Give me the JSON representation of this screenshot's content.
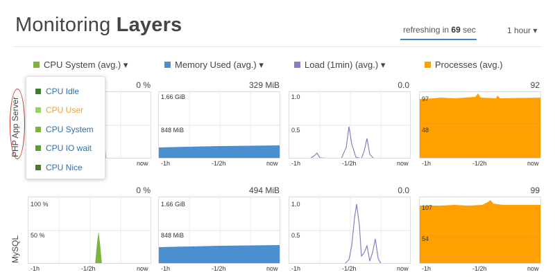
{
  "header": {
    "title_light": "Monitoring",
    "title_bold": "Layers",
    "refresh_prefix": "refreshing in",
    "refresh_seconds": "69",
    "refresh_suffix": "sec",
    "time_range": "1 hour ▾"
  },
  "colors": {
    "cpu": "#7fb23e",
    "memory": "#4a8fd0",
    "load": "#8c7bbf",
    "processes": "#ff9f00"
  },
  "columns": [
    {
      "label": "CPU System (avg.) ▾",
      "swatch_color": "#7fb23e"
    },
    {
      "label": "Memory Used (avg.) ▾",
      "swatch_color": "#4a8fd0"
    },
    {
      "label": "Load (1min) (avg.) ▾",
      "swatch_color": "#8c7bbf"
    },
    {
      "label": "Processes (avg.)",
      "swatch_color": "#ff9f00"
    }
  ],
  "axis_labels": {
    "start": "-1h",
    "mid": "-1/2h",
    "end": "now"
  },
  "rows": [
    {
      "name": "PHP App Server",
      "current_values": [
        "0 %",
        "329 MiB",
        "0.0",
        "92"
      ],
      "grid_labels": {
        "memory": [
          "1.66 GiB",
          "848 MiB"
        ],
        "load": [
          "1.0",
          "0.5"
        ],
        "processes": [
          "97",
          "48"
        ]
      }
    },
    {
      "name": "MySQL",
      "current_values": [
        "0 %",
        "494 MiB",
        "0.0",
        "99"
      ],
      "grid_labels": {
        "cpu": [
          "100 %",
          "50 %"
        ],
        "memory": [
          "1.66 GiB",
          "848 MiB"
        ],
        "load": [
          "1.0",
          "0.5"
        ],
        "processes": [
          "107",
          "54"
        ]
      }
    }
  ],
  "dropdown": {
    "items": [
      {
        "label": "CPU Idle",
        "swatch_color": "#3a7d2a",
        "text_color": "#2d6fb0"
      },
      {
        "label": "CPU User",
        "swatch_color": "#9ccc65",
        "text_color": "#f0a22b"
      },
      {
        "label": "CPU System",
        "swatch_color": "#7fb23e",
        "text_color": "#2d6fb0"
      },
      {
        "label": "CPU IO wait",
        "swatch_color": "#5a9a3a",
        "text_color": "#2d6fb0"
      },
      {
        "label": "CPU Nice",
        "swatch_color": "#4c7a2d",
        "text_color": "#2d6fb0"
      }
    ]
  }
}
